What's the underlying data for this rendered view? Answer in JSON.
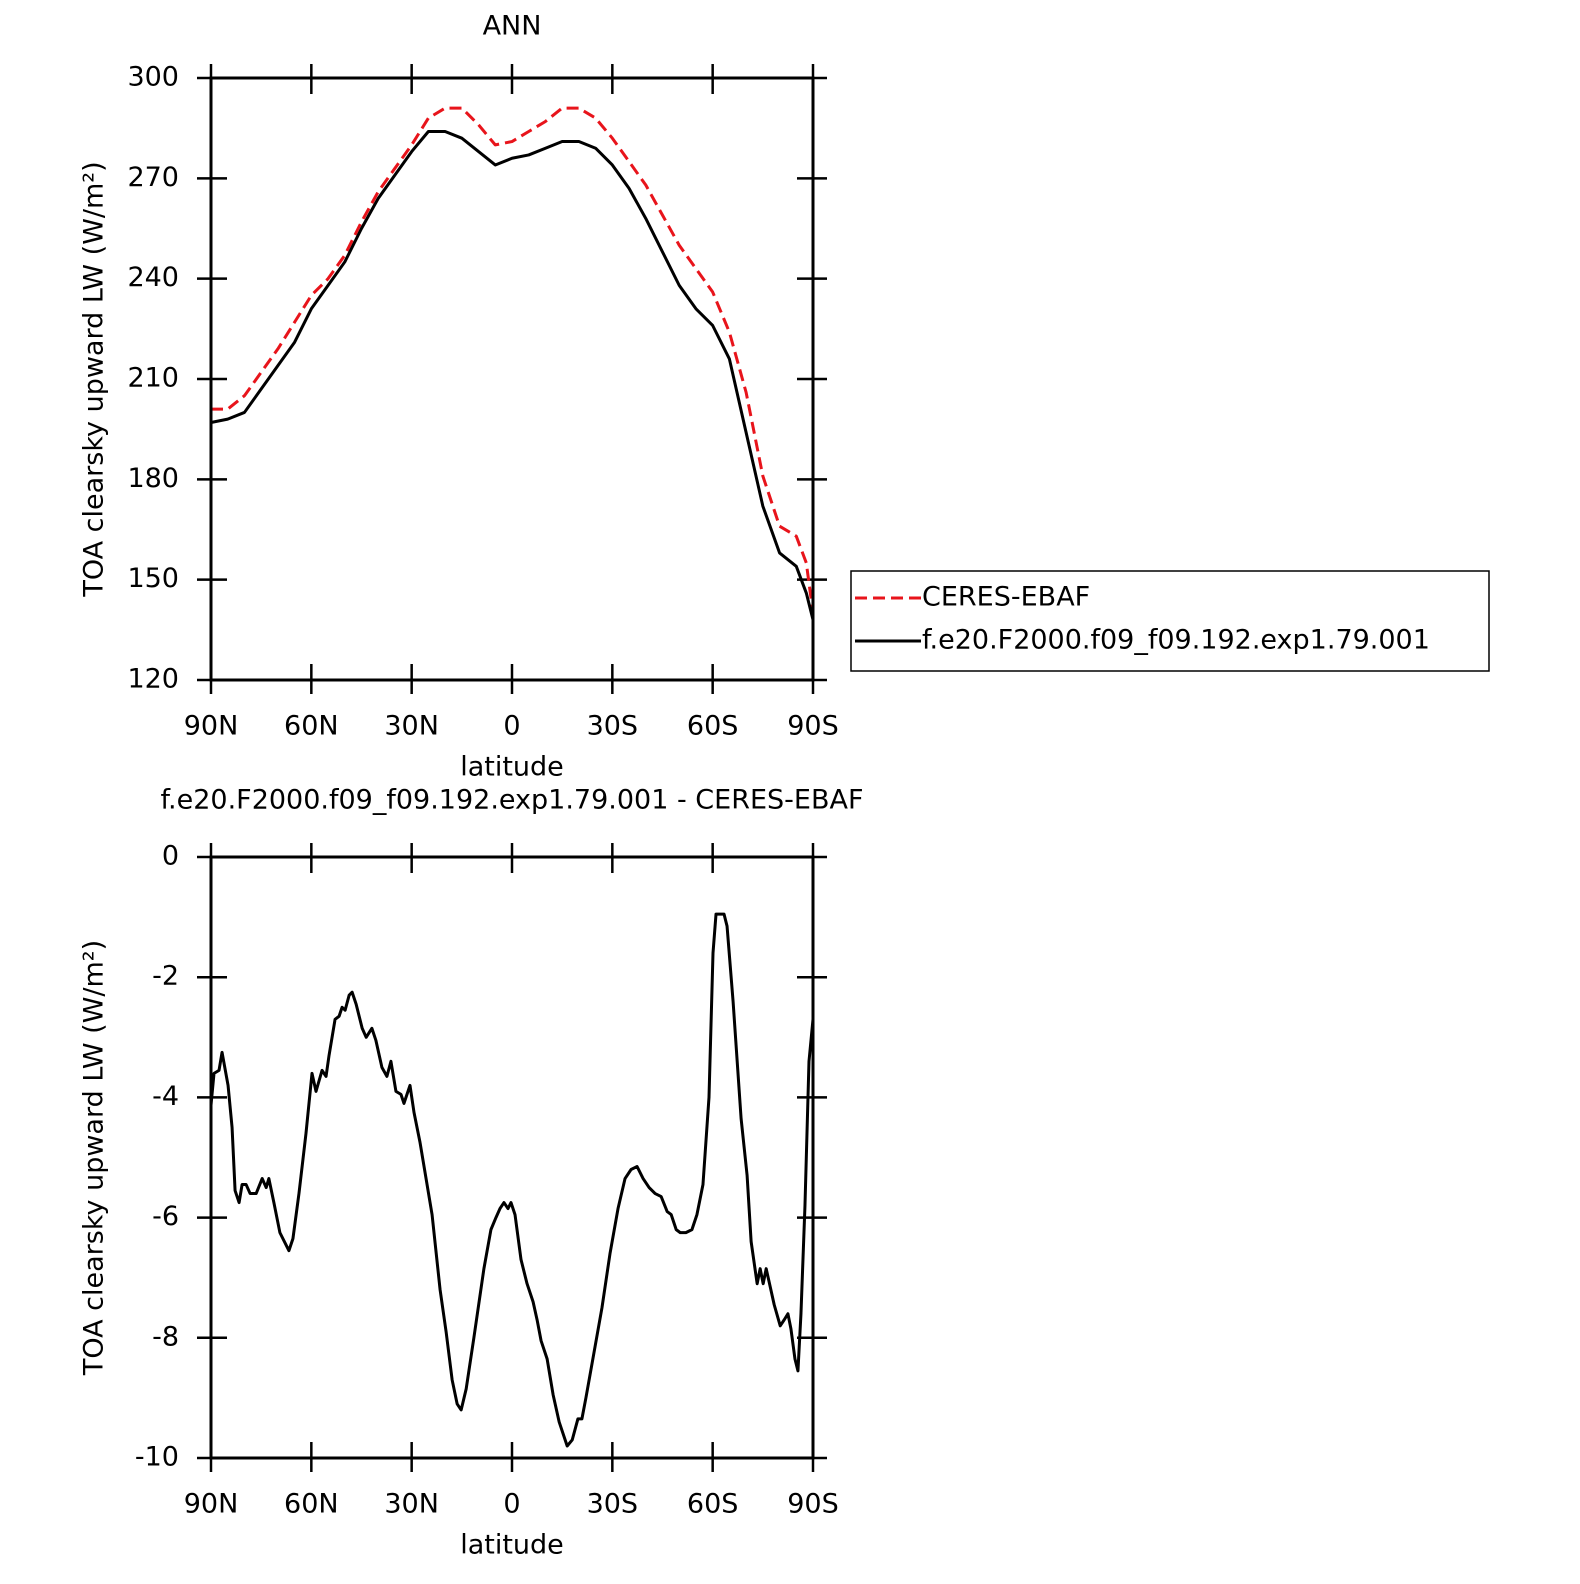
{
  "chart_data": [
    {
      "type": "line",
      "title": "ANN",
      "xlabel": "latitude",
      "ylabel": "TOA clearsky upward LW (W/m²)",
      "x": [
        90,
        85,
        80,
        75,
        70,
        65,
        60,
        55,
        50,
        45,
        40,
        35,
        30,
        25,
        20,
        15,
        10,
        5,
        0,
        -5,
        -10,
        -15,
        -20,
        -25,
        -30,
        -35,
        -40,
        -45,
        -50,
        -55,
        -60,
        -65,
        -70,
        -75,
        -80,
        -85,
        -88,
        -90
      ],
      "series": [
        {
          "name": "CERES-EBAF",
          "color": "#e8141b",
          "style": "dashed",
          "values": [
            201,
            201,
            205,
            212,
            219,
            227,
            235,
            240,
            247,
            257,
            266,
            273,
            280,
            288,
            291,
            291,
            286,
            280,
            281,
            284,
            287,
            291,
            291,
            288,
            282,
            275,
            268,
            259,
            250,
            243,
            236,
            224,
            206,
            181,
            166,
            163,
            155,
            140
          ]
        },
        {
          "name": "f.e20.F2000.f09_f09.192.exp1.79.001",
          "color": "#000000",
          "style": "solid",
          "values": [
            197,
            198,
            200,
            207,
            214,
            221,
            231,
            238,
            245,
            255,
            264,
            271,
            278,
            284,
            284,
            282,
            278,
            274,
            276,
            277,
            279,
            281,
            281,
            279,
            274,
            267,
            258,
            248,
            238,
            231,
            226,
            216,
            194,
            172,
            158,
            154,
            146,
            138
          ]
        }
      ],
      "xlim": [
        90,
        -90
      ],
      "xticks": [
        {
          "value": 90,
          "label": "90N"
        },
        {
          "value": 60,
          "label": "60N"
        },
        {
          "value": 30,
          "label": "30N"
        },
        0,
        {
          "value": -30,
          "label": "30S"
        },
        {
          "value": -60,
          "label": "60S"
        },
        {
          "value": -90,
          "label": "90S"
        }
      ],
      "ylim": [
        120,
        300
      ],
      "yticks": [
        120,
        150,
        180,
        210,
        240,
        270,
        300
      ],
      "legend": "outside-right"
    },
    {
      "type": "line",
      "title": "f.e20.F2000.f09_f09.192.exp1.79.001 - CERES-EBAF",
      "xlabel": "latitude",
      "ylabel": "TOA clearsky upward LW (W/m²)",
      "x": [
        90,
        89.1,
        87.6,
        86.7,
        84.9,
        83.7,
        82.8,
        81.6,
        80.7,
        79.5,
        78.3,
        76.5,
        74.7,
        73.5,
        72.7,
        71.2,
        69.4,
        66.7,
        65.5,
        63.7,
        61.6,
        59.8,
        58.6,
        56.8,
        55.6,
        54.7,
        52.9,
        51.7,
        50.8,
        49.9,
        48.7,
        47.8,
        46.6,
        44.8,
        43.6,
        41.9,
        40.7,
        38.9,
        37.4,
        36.2,
        34.7,
        33.2,
        32.3,
        30.5,
        29.3,
        27.5,
        25.7,
        23.9,
        21.5,
        19.7,
        17.9,
        16.4,
        15.2,
        13.7,
        11.4,
        8.4,
        6.3,
        4.8,
        3.6,
        2.4,
        1.2,
        0.3,
        -0.9,
        -2.7,
        -4.5,
        -6.3,
        -7.5,
        -8.7,
        -10.5,
        -12.3,
        -14.1,
        -16.5,
        -18,
        -19.7,
        -20.9,
        -22.1,
        -24.5,
        -26.9,
        -29.3,
        -31.7,
        -33.8,
        -35.6,
        -37.4,
        -39.2,
        -41,
        -42.8,
        -44.6,
        -46.4,
        -47.6,
        -49.1,
        -50.3,
        -52,
        -53.8,
        -55.3,
        -57.1,
        -58.9,
        -60.1,
        -61,
        -63.4,
        -64.3,
        -66.1,
        -68.5,
        -70.3,
        -71.5,
        -73.3,
        -74.2,
        -75.1,
        -76,
        -77.2,
        -78.4,
        -80.2,
        -81.4,
        -82.5,
        -83.4,
        -84.6,
        -85.5,
        -86.4,
        -87.6,
        -88.8,
        -90
      ],
      "values": [
        -4.13,
        -3.6,
        -3.55,
        -3.25,
        -3.8,
        -4.5,
        -5.55,
        -5.75,
        -5.45,
        -5.45,
        -5.6,
        -5.6,
        -5.35,
        -5.5,
        -5.35,
        -5.75,
        -6.25,
        -6.55,
        -6.35,
        -5.6,
        -4.6,
        -3.6,
        -3.9,
        -3.55,
        -3.65,
        -3.3,
        -2.7,
        -2.65,
        -2.5,
        -2.55,
        -2.3,
        -2.25,
        -2.45,
        -2.85,
        -3.0,
        -2.85,
        -3.05,
        -3.5,
        -3.65,
        -3.4,
        -3.9,
        -3.95,
        -4.1,
        -3.8,
        -4.25,
        -4.75,
        -5.35,
        -5.95,
        -7.2,
        -7.9,
        -8.7,
        -9.1,
        -9.2,
        -8.85,
        -8.0,
        -6.85,
        -6.2,
        -6.0,
        -5.85,
        -5.75,
        -5.85,
        -5.75,
        -5.95,
        -6.7,
        -7.1,
        -7.4,
        -7.7,
        -8.05,
        -8.35,
        -8.95,
        -9.4,
        -9.8,
        -9.7,
        -9.35,
        -9.35,
        -9.0,
        -8.25,
        -7.5,
        -6.6,
        -5.85,
        -5.35,
        -5.2,
        -5.15,
        -5.35,
        -5.5,
        -5.6,
        -5.65,
        -5.9,
        -5.95,
        -6.2,
        -6.25,
        -6.25,
        -6.2,
        -5.95,
        -5.45,
        -4.0,
        -1.6,
        -0.95,
        -0.95,
        -1.15,
        -2.4,
        -4.35,
        -5.3,
        -6.4,
        -7.1,
        -6.85,
        -7.1,
        -6.85,
        -7.15,
        -7.45,
        -7.8,
        -7.7,
        -7.6,
        -7.85,
        -8.35,
        -8.55,
        -7.6,
        -5.8,
        -3.4,
        -2.7
      ],
      "color": "#000000",
      "xlim": [
        90,
        -90
      ],
      "xticks": [
        {
          "value": 90,
          "label": "90N"
        },
        {
          "value": 60,
          "label": "60N"
        },
        {
          "value": 30,
          "label": "30N"
        },
        0,
        {
          "value": -30,
          "label": "30S"
        },
        {
          "value": -60,
          "label": "60S"
        },
        {
          "value": -90,
          "label": "90S"
        }
      ],
      "ylim": [
        -10,
        0
      ],
      "yticks": [
        -10,
        -8,
        -6,
        -4,
        -2,
        0
      ]
    }
  ]
}
